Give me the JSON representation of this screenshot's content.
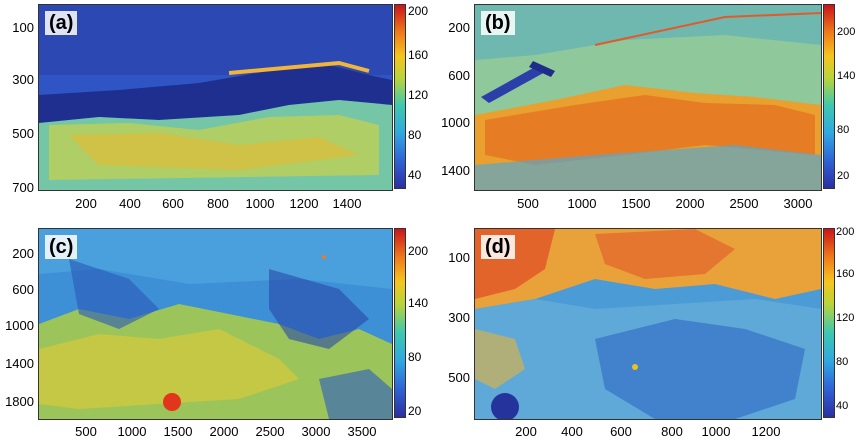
{
  "panels": [
    {
      "label": "(a)",
      "yticks": [
        "100",
        "300",
        "500",
        "700"
      ],
      "xticks": [
        "200",
        "400",
        "600",
        "800",
        "1000",
        "1200",
        "1400"
      ],
      "cticks": [
        "200",
        "160",
        "120",
        "80",
        "40"
      ]
    },
    {
      "label": "(b)",
      "yticks": [
        "200",
        "600",
        "1000",
        "1400"
      ],
      "xticks": [
        "500",
        "1000",
        "1500",
        "2000",
        "2500",
        "3000"
      ],
      "cticks": [
        "200",
        "140",
        "80",
        "20"
      ]
    },
    {
      "label": "(c)",
      "yticks": [
        "200",
        "600",
        "1000",
        "1400",
        "1800"
      ],
      "xticks": [
        "500",
        "1000",
        "1500",
        "2000",
        "2500",
        "3000",
        "3500"
      ],
      "cticks": [
        "200",
        "140",
        "80",
        "20"
      ]
    },
    {
      "label": "(d)",
      "yticks": [
        "100",
        "300",
        "500"
      ],
      "xticks": [
        "200",
        "400",
        "600",
        "800",
        "1000",
        "1200"
      ],
      "cticks": [
        "200",
        "160",
        "120",
        "80",
        "40"
      ]
    }
  ],
  "colors": {
    "low": "#2b2fa3",
    "mid": "#3ec8b0",
    "high": "#c9151b"
  }
}
